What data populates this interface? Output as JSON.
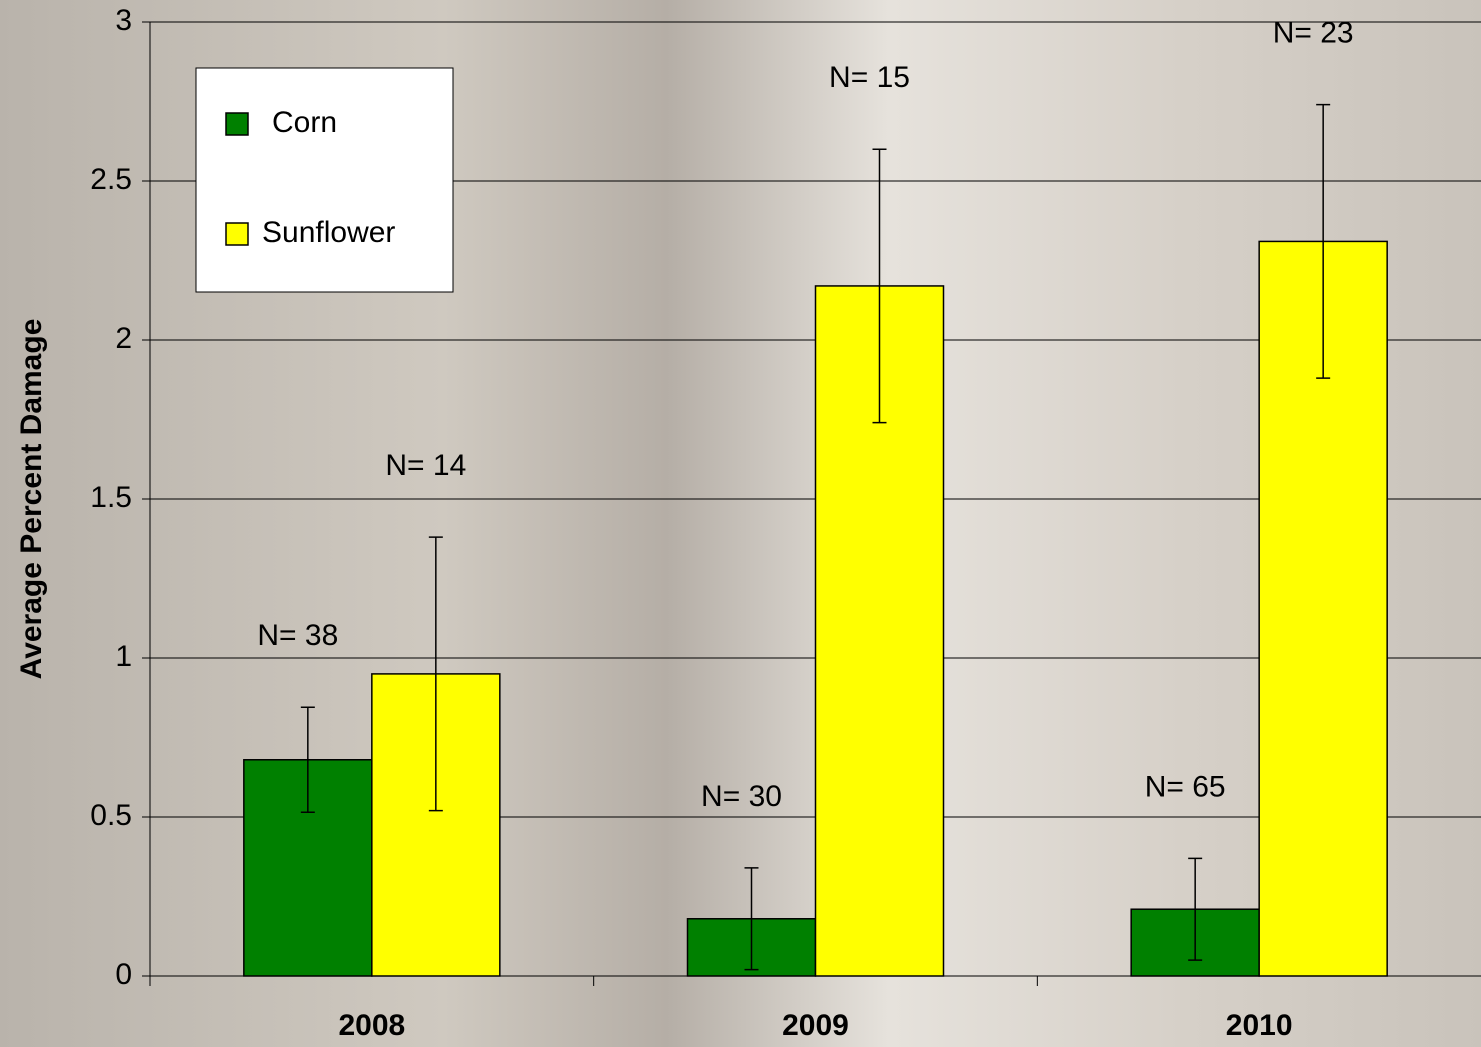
{
  "chart_data": {
    "type": "bar",
    "y_label": "Average Percent Damage",
    "categories": [
      "2008",
      "2009",
      "2010"
    ],
    "series": [
      {
        "name": "Corn",
        "color": "#008000",
        "values": [
          0.68,
          0.18,
          0.21
        ],
        "errors": [
          0.165,
          0.16,
          0.16
        ],
        "n_labels": [
          "N= 38",
          "N= 30",
          "N= 65"
        ]
      },
      {
        "name": "Sunflower",
        "color": "#ffff00",
        "values": [
          0.95,
          2.17,
          2.31
        ],
        "errors": [
          0.43,
          0.43,
          0.43
        ],
        "n_labels": [
          "N= 14",
          "N= 15",
          "N= 23"
        ]
      }
    ],
    "ylim": [
      0,
      3
    ],
    "yticks": [
      0,
      0.5,
      1,
      1.5,
      2,
      2.5,
      3
    ],
    "grid": true,
    "legend": "upper left"
  }
}
